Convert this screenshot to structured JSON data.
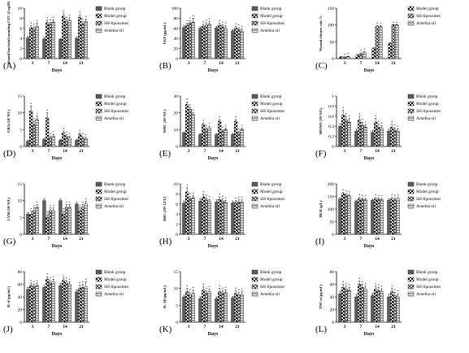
{
  "figure": {
    "legend_shared": [
      "Blank group",
      "Model group",
      "SH-liposomes",
      "Arnebia oil"
    ],
    "legend_C": [
      "Model group",
      "SH-liposomes",
      "Arnebia oil"
    ]
  },
  "chart_data": [
    {
      "panel_label": "(A)",
      "type": "bar",
      "ylabel": "Wound bacterial counting CFU (Log10)",
      "xlabel": "Days",
      "categories": [
        "3",
        "7",
        "14",
        "21"
      ],
      "ylim": [
        0,
        10
      ],
      "yticks": [
        0,
        2,
        4,
        6,
        8,
        10
      ],
      "series": [
        {
          "name": "Blank group",
          "values": [
            4.1,
            3.9,
            3.8,
            4.0
          ],
          "errors": [
            0.3,
            0.3,
            0.2,
            0.3
          ]
        },
        {
          "name": "Model group",
          "values": [
            6.1,
            7.1,
            8.4,
            8.2
          ],
          "errors": [
            0.4,
            0.5,
            0.5,
            0.5
          ]
        },
        {
          "name": "SH-liposomes",
          "values": [
            5.9,
            6.8,
            7.3,
            6.9
          ],
          "errors": [
            0.4,
            0.4,
            0.4,
            0.4
          ]
        },
        {
          "name": "Arnebia oil",
          "values": [
            6.4,
            7.2,
            7.6,
            7.3
          ],
          "errors": [
            0.6,
            0.5,
            0.5,
            0.5
          ]
        }
      ],
      "star_series": [
        1,
        2,
        3
      ]
    },
    {
      "panel_label": "(B)",
      "type": "bar",
      "ylabel": "EGF (pg/mL)",
      "xlabel": "Days",
      "categories": [
        "3",
        "7",
        "14",
        "21"
      ],
      "ylim": [
        0,
        100
      ],
      "yticks": [
        0,
        20,
        40,
        60,
        80,
        100
      ],
      "series": [
        {
          "name": "Blank group",
          "values": [
            62,
            60,
            61,
            55
          ],
          "errors": [
            3,
            3,
            3,
            3
          ]
        },
        {
          "name": "Model group",
          "values": [
            66,
            64,
            66,
            60
          ],
          "errors": [
            4,
            4,
            4,
            4
          ]
        },
        {
          "name": "SH-liposomes",
          "values": [
            70,
            66,
            63,
            57
          ],
          "errors": [
            5,
            5,
            4,
            4
          ]
        },
        {
          "name": "Arnebia oil",
          "values": [
            72,
            68,
            60,
            54
          ],
          "errors": [
            8,
            5,
            5,
            5
          ]
        }
      ],
      "star_series": [
        1,
        2,
        3
      ]
    },
    {
      "panel_label": "(C)",
      "type": "bar",
      "ylabel": "Wound closure rate %",
      "xlabel": "Days",
      "categories": [
        "3",
        "7",
        "14",
        "21"
      ],
      "ylim": [
        0,
        150
      ],
      "yticks": [
        0,
        50,
        100,
        150
      ],
      "series": [
        {
          "name": "Model group",
          "values": [
            5,
            10,
            30,
            45
          ],
          "errors": [
            1,
            2,
            2,
            3
          ]
        },
        {
          "name": "SH-liposomes",
          "values": [
            4,
            14,
            95,
            100
          ],
          "errors": [
            1,
            3,
            3,
            1
          ]
        },
        {
          "name": "Arnebia oil",
          "values": [
            6,
            18,
            95,
            100
          ],
          "errors": [
            1,
            3,
            3,
            1
          ]
        }
      ],
      "star_series": [
        1,
        2
      ]
    },
    {
      "panel_label": "(D)",
      "type": "bar",
      "ylabel": "GRA (10^9/L)",
      "xlabel": "Days",
      "categories": [
        "3",
        "7",
        "14",
        "21"
      ],
      "ylim": [
        0,
        15
      ],
      "yticks": [
        0,
        5,
        10,
        15
      ],
      "series": [
        {
          "name": "Blank group",
          "values": [
            1.5,
            2.0,
            1.8,
            1.8
          ],
          "errors": [
            0.3,
            0.3,
            0.3,
            0.3
          ]
        },
        {
          "name": "Model group",
          "values": [
            10.5,
            8.5,
            4.0,
            3.5
          ],
          "errors": [
            1.5,
            1.5,
            0.6,
            0.5
          ]
        },
        {
          "name": "SH-liposomes",
          "values": [
            6.5,
            2.5,
            3.0,
            2.5
          ],
          "errors": [
            1.0,
            0.5,
            0.5,
            0.5
          ]
        },
        {
          "name": "Arnebia oil",
          "values": [
            8.0,
            3.0,
            2.5,
            2.3
          ],
          "errors": [
            1.0,
            0.6,
            0.5,
            0.4
          ]
        }
      ],
      "star_series": [
        1,
        2,
        3
      ]
    },
    {
      "panel_label": "(E)",
      "type": "bar",
      "ylabel": "WBC (10^9/L)",
      "xlabel": "Days",
      "categories": [
        "3",
        "7",
        "14",
        "21"
      ],
      "ylim": [
        0,
        30
      ],
      "yticks": [
        0,
        10,
        20,
        30
      ],
      "series": [
        {
          "name": "Blank group",
          "values": [
            8,
            7,
            7,
            7
          ],
          "errors": [
            0.5,
            0.5,
            0.5,
            0.5
          ]
        },
        {
          "name": "Model group",
          "values": [
            25,
            13,
            15,
            15
          ],
          "errors": [
            1.5,
            1.0,
            1.0,
            1.0
          ]
        },
        {
          "name": "SH-liposomes",
          "values": [
            22,
            10,
            9,
            8
          ],
          "errors": [
            1.2,
            1.0,
            0.8,
            0.8
          ]
        },
        {
          "name": "Arnebia oil",
          "values": [
            19,
            11,
            10,
            10
          ],
          "errors": [
            1.0,
            1.0,
            1.0,
            1.0
          ]
        }
      ],
      "star_series": [
        1,
        2,
        3
      ]
    },
    {
      "panel_label": "(F)",
      "type": "bar",
      "ylabel": "MONO (10^9/L)",
      "xlabel": "Days",
      "categories": [
        "3",
        "7",
        "14",
        "21"
      ],
      "ylim": [
        0,
        1.0
      ],
      "yticks": [
        0.0,
        0.2,
        0.4,
        0.6,
        0.8,
        1.0
      ],
      "series": [
        {
          "name": "Blank group",
          "values": [
            0.4,
            0.3,
            0.28,
            0.3
          ],
          "errors": [
            0.05,
            0.04,
            0.04,
            0.04
          ]
        },
        {
          "name": "Model group",
          "values": [
            0.62,
            0.52,
            0.48,
            0.38
          ],
          "errors": [
            0.1,
            0.08,
            0.08,
            0.06
          ]
        },
        {
          "name": "SH-liposomes",
          "values": [
            0.52,
            0.42,
            0.38,
            0.32
          ],
          "errors": [
            0.08,
            0.06,
            0.06,
            0.05
          ]
        },
        {
          "name": "Arnebia oil",
          "values": [
            0.48,
            0.38,
            0.36,
            0.3
          ],
          "errors": [
            0.07,
            0.05,
            0.05,
            0.05
          ]
        }
      ],
      "star_series": [
        1,
        2,
        3
      ]
    },
    {
      "panel_label": "(G)",
      "type": "bar",
      "ylabel": "LYM (10^9/L)",
      "xlabel": "Days",
      "categories": [
        "3",
        "7",
        "14",
        "21"
      ],
      "ylim": [
        0,
        15
      ],
      "yticks": [
        0,
        5,
        10,
        15
      ],
      "series": [
        {
          "name": "Blank group",
          "values": [
            6,
            10,
            10,
            9
          ],
          "errors": [
            0.5,
            0.5,
            0.5,
            0.5
          ]
        },
        {
          "name": "Model group",
          "values": [
            6,
            5,
            6,
            7
          ],
          "errors": [
            0.8,
            0.8,
            0.8,
            0.8
          ]
        },
        {
          "name": "SH-liposomes",
          "values": [
            7,
            7,
            8,
            8
          ],
          "errors": [
            0.8,
            0.8,
            0.8,
            0.8
          ]
        },
        {
          "name": "Arnebia oil",
          "values": [
            8,
            7,
            8,
            9
          ],
          "errors": [
            0.8,
            0.8,
            0.8,
            0.8
          ]
        }
      ],
      "star_series": [
        1,
        2,
        3
      ]
    },
    {
      "panel_label": "(H)",
      "type": "bar",
      "ylabel": "RBC (10^12/L)",
      "xlabel": "Days",
      "categories": [
        "3",
        "7",
        "14",
        "21"
      ],
      "ylim": [
        0,
        10
      ],
      "yticks": [
        0,
        2,
        4,
        6,
        8,
        10
      ],
      "series": [
        {
          "name": "Blank group",
          "values": [
            6.2,
            6.6,
            6.4,
            6.2
          ],
          "errors": [
            0.4,
            0.4,
            0.4,
            0.4
          ]
        },
        {
          "name": "Model group",
          "values": [
            8.4,
            7.4,
            6.9,
            6.3
          ],
          "errors": [
            0.8,
            0.5,
            0.5,
            0.4
          ]
        },
        {
          "name": "SH-liposomes",
          "values": [
            7.0,
            6.8,
            6.6,
            6.4
          ],
          "errors": [
            0.5,
            0.4,
            0.4,
            0.4
          ]
        },
        {
          "name": "Arnebia oil",
          "values": [
            7.2,
            6.5,
            6.3,
            6.4
          ],
          "errors": [
            0.5,
            0.4,
            0.4,
            0.4
          ]
        }
      ],
      "star_series": [
        1,
        2,
        3
      ]
    },
    {
      "panel_label": "(I)",
      "type": "bar",
      "ylabel": "HGB (g/L)",
      "xlabel": "Days",
      "categories": [
        "3",
        "7",
        "14",
        "21"
      ],
      "ylim": [
        0,
        200
      ],
      "yticks": [
        0,
        50,
        100,
        150,
        200
      ],
      "series": [
        {
          "name": "Blank group",
          "values": [
            140,
            130,
            135,
            135
          ],
          "errors": [
            5,
            5,
            5,
            5
          ]
        },
        {
          "name": "Model group",
          "values": [
            160,
            140,
            140,
            140
          ],
          "errors": [
            6,
            6,
            6,
            6
          ]
        },
        {
          "name": "SH-liposomes",
          "values": [
            155,
            138,
            138,
            137
          ],
          "errors": [
            6,
            6,
            6,
            6
          ]
        },
        {
          "name": "Arnebia oil",
          "values": [
            152,
            136,
            136,
            140
          ],
          "errors": [
            6,
            6,
            6,
            6
          ]
        }
      ],
      "star_series": [
        1,
        2,
        3
      ]
    },
    {
      "panel_label": "(J)",
      "type": "bar",
      "ylabel": "IL-6 (pg/mL)",
      "xlabel": "Days",
      "categories": [
        "3",
        "7",
        "14",
        "21"
      ],
      "ylim": [
        0,
        80
      ],
      "yticks": [
        0,
        20,
        40,
        60,
        80
      ],
      "series": [
        {
          "name": "Blank group",
          "values": [
            52,
            55,
            58,
            48
          ],
          "errors": [
            3,
            3,
            3,
            3
          ]
        },
        {
          "name": "Model group",
          "values": [
            58,
            68,
            66,
            54
          ],
          "errors": [
            4,
            4,
            4,
            5
          ]
        },
        {
          "name": "SH-liposomes",
          "values": [
            56,
            62,
            62,
            55
          ],
          "errors": [
            4,
            4,
            4,
            5
          ]
        },
        {
          "name": "Arnebia oil",
          "values": [
            58,
            64,
            60,
            56
          ],
          "errors": [
            4,
            4,
            4,
            8
          ]
        }
      ],
      "star_series": [
        1,
        2,
        3
      ]
    },
    {
      "panel_label": "(K)",
      "type": "bar",
      "ylabel": "IL-1β (pg/mL)",
      "xlabel": "Days",
      "categories": [
        "3",
        "7",
        "14",
        "21"
      ],
      "ylim": [
        0,
        15
      ],
      "yticks": [
        0,
        5,
        10,
        15
      ],
      "series": [
        {
          "name": "Blank group",
          "values": [
            7.5,
            7.0,
            7.0,
            7.2
          ],
          "errors": [
            0.5,
            0.5,
            0.5,
            0.5
          ]
        },
        {
          "name": "Model group",
          "values": [
            9.0,
            9.5,
            9.0,
            8.5
          ],
          "errors": [
            1.0,
            1.0,
            1.0,
            0.8
          ]
        },
        {
          "name": "SH-liposomes",
          "values": [
            8.0,
            8.5,
            8.5,
            8.0
          ],
          "errors": [
            0.8,
            0.8,
            0.8,
            0.8
          ]
        },
        {
          "name": "Arnebia oil",
          "values": [
            8.5,
            9.0,
            8.8,
            8.2
          ],
          "errors": [
            1.0,
            0.8,
            0.8,
            0.8
          ]
        }
      ],
      "star_series": [
        1,
        2,
        3
      ]
    },
    {
      "panel_label": "(L)",
      "type": "bar",
      "ylabel": "TNF-α (pg/mL)",
      "xlabel": "Days",
      "categories": [
        "3",
        "7",
        "14",
        "21"
      ],
      "ylim": [
        0,
        80
      ],
      "yticks": [
        0,
        20,
        40,
        60,
        80
      ],
      "series": [
        {
          "name": "Blank group",
          "values": [
            45,
            40,
            42,
            40
          ],
          "errors": [
            4,
            4,
            4,
            4
          ]
        },
        {
          "name": "Model group",
          "values": [
            55,
            60,
            52,
            48
          ],
          "errors": [
            5,
            5,
            5,
            5
          ]
        },
        {
          "name": "SH-liposomes",
          "values": [
            52,
            55,
            50,
            42
          ],
          "errors": [
            5,
            5,
            5,
            5
          ]
        },
        {
          "name": "Arnebia oil",
          "values": [
            50,
            52,
            48,
            40
          ],
          "errors": [
            5,
            5,
            5,
            5
          ]
        }
      ],
      "star_series": [
        1,
        2,
        3
      ]
    }
  ]
}
